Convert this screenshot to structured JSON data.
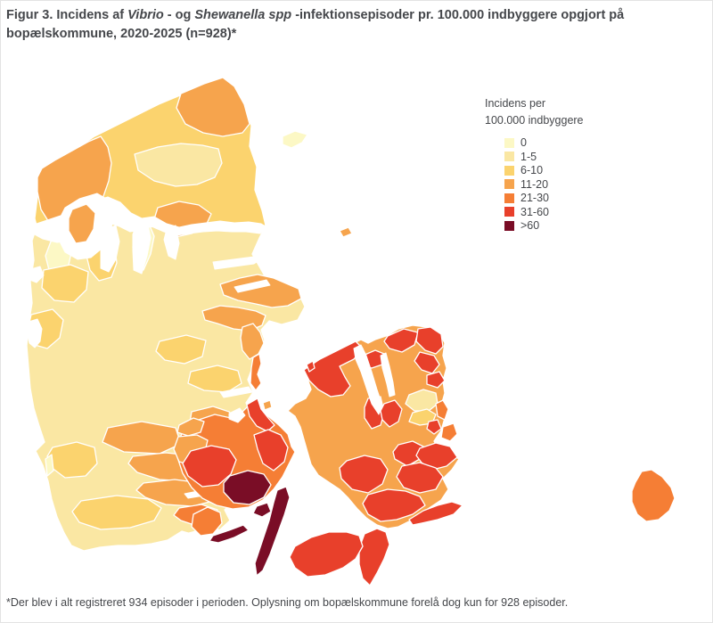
{
  "figure": {
    "title_parts": [
      {
        "text": "Figur 3. Incidens af ",
        "italic": false
      },
      {
        "text": "Vibrio",
        "italic": true
      },
      {
        "text": " - og ",
        "italic": false
      },
      {
        "text": "Shewanella spp",
        "italic": true
      },
      {
        "text": " -infektionsepisoder pr. 100.000 indbyggere opgjort på bopælskommune, 2020-2025 (n=928)*",
        "italic": false
      }
    ],
    "footnote": "*Der blev i alt registreret 934 episoder i perioden. Oplysning om bopælskommune forelå dog kun for 928 episoder."
  },
  "legend": {
    "title_line1": "Incidens per",
    "title_line2": "100.000 indbyggere"
  },
  "chart_data": {
    "type": "choropleth",
    "map_subject": "Danmark, kommuner (bopælskommune)",
    "title": "Figur 3. Incidens af Vibrio- og Shewanella spp-infektionsepisoder pr. 100.000 indbyggere opgjort på bopælskommune, 2020-2025 (n=928)",
    "legend_title": "Incidens per 100.000 indbyggere",
    "n_episodes_on_map": 928,
    "n_episodes_total": 934,
    "period": "2020-2025",
    "categories": [
      {
        "label": "0",
        "color": "#FCF8C5"
      },
      {
        "label": "1-5",
        "color": "#FAE7A3"
      },
      {
        "label": "6-10",
        "color": "#FBD36E"
      },
      {
        "label": "11-20",
        "color": "#F6A44D"
      },
      {
        "label": "21-30",
        "color": "#F57E35"
      },
      {
        "label": "31-60",
        "color": "#E8402B"
      },
      {
        "label": ">60",
        "color": "#7A0D26"
      }
    ],
    "regions": [
      {
        "id": "jutland-base",
        "category": "1-5"
      },
      {
        "id": "vendsyssel-base",
        "category": "6-10"
      },
      {
        "id": "frederikshavn-skagen",
        "category": "11-20"
      },
      {
        "id": "broenderslev",
        "category": "1-5"
      },
      {
        "id": "thisted",
        "category": "11-20"
      },
      {
        "id": "morsoe",
        "category": "11-20"
      },
      {
        "id": "skive",
        "category": "6-10"
      },
      {
        "id": "struer",
        "category": "0"
      },
      {
        "id": "vesthimmerland-vest",
        "category": "0"
      },
      {
        "id": "rebild",
        "category": "11-20"
      },
      {
        "id": "holstebro",
        "category": "6-10"
      },
      {
        "id": "ringkoebing-kyst",
        "category": "6-10"
      },
      {
        "id": "norddjurs",
        "category": "11-20"
      },
      {
        "id": "syddjurs",
        "category": "11-20"
      },
      {
        "id": "aarhus",
        "category": "11-20"
      },
      {
        "id": "silkeborg-skanderborg",
        "category": "6-10"
      },
      {
        "id": "horsens",
        "category": "6-10"
      },
      {
        "id": "samsoe",
        "category": "21-30"
      },
      {
        "id": "endelave",
        "category": "11-20"
      },
      {
        "id": "vejle",
        "category": "11-20"
      },
      {
        "id": "fredericia",
        "category": "11-20"
      },
      {
        "id": "vejen",
        "category": "11-20"
      },
      {
        "id": "kolding",
        "category": "11-20"
      },
      {
        "id": "esbjerg",
        "category": "6-10"
      },
      {
        "id": "fanoe",
        "category": "0"
      },
      {
        "id": "haderslev",
        "category": "11-20"
      },
      {
        "id": "aabenraa",
        "category": "11-20"
      },
      {
        "id": "toender",
        "category": "6-10"
      },
      {
        "id": "soenderborg",
        "category": "21-30"
      },
      {
        "id": "als",
        "category": "21-30"
      },
      {
        "id": "laesoe",
        "category": "0"
      },
      {
        "id": "anholt",
        "category": "11-20"
      },
      {
        "id": "fyn-base",
        "category": "21-30"
      },
      {
        "id": "middelfart",
        "category": "11-20"
      },
      {
        "id": "kerteminde",
        "category": "31-60"
      },
      {
        "id": "assens",
        "category": "11-20"
      },
      {
        "id": "faaborg-midtfyn",
        "category": "31-60"
      },
      {
        "id": "nyborg",
        "category": "31-60"
      },
      {
        "id": "svendborg",
        "category": ">60"
      },
      {
        "id": "taasinge",
        "category": ">60"
      },
      {
        "id": "langeland",
        "category": ">60"
      },
      {
        "id": "aeroe",
        "category": ">60"
      },
      {
        "id": "sjaelland-base",
        "category": "11-20"
      },
      {
        "id": "odsherred",
        "category": "31-60"
      },
      {
        "id": "halsnaes",
        "category": "31-60"
      },
      {
        "id": "gribskov",
        "category": "31-60"
      },
      {
        "id": "helsingoer",
        "category": "31-60"
      },
      {
        "id": "fredensborg",
        "category": "31-60"
      },
      {
        "id": "hoersholm",
        "category": "31-60"
      },
      {
        "id": "hovedstaden-pale",
        "category": "1-5"
      },
      {
        "id": "hovedstaden-lys",
        "category": "6-10"
      },
      {
        "id": "koebenhavn",
        "category": "21-30"
      },
      {
        "id": "vestegnen",
        "category": "31-60"
      },
      {
        "id": "amager",
        "category": "21-30"
      },
      {
        "id": "lejre",
        "category": "31-60"
      },
      {
        "id": "roskilde",
        "category": "31-60"
      },
      {
        "id": "koege",
        "category": "31-60"
      },
      {
        "id": "stevns",
        "category": "31-60"
      },
      {
        "id": "faxe",
        "category": "31-60"
      },
      {
        "id": "naestved",
        "category": "31-60"
      },
      {
        "id": "vordingborg",
        "category": "31-60"
      },
      {
        "id": "sejeroe",
        "category": "31-60"
      },
      {
        "id": "moen",
        "category": "31-60"
      },
      {
        "id": "falster",
        "category": "31-60"
      },
      {
        "id": "lolland",
        "category": "31-60"
      },
      {
        "id": "bornholm",
        "category": "21-30"
      }
    ]
  }
}
